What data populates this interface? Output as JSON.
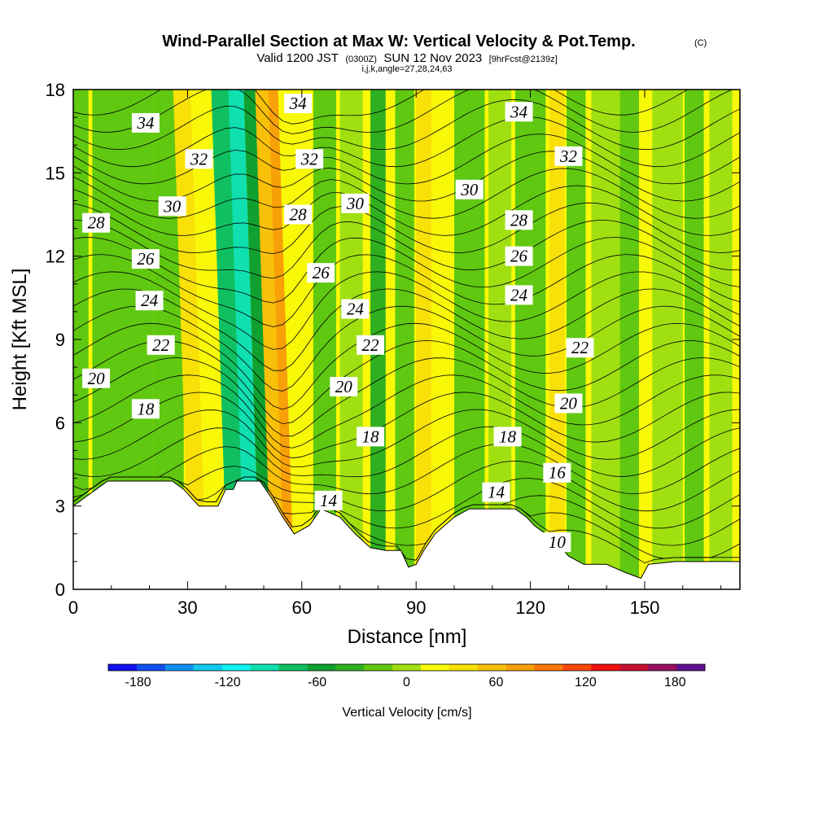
{
  "chart_data": {
    "type": "heatmap",
    "title": "Wind-Parallel Section at Max W: Vertical Velocity & Pot.Temp.",
    "copyright_mark": "(C)",
    "subtitle_valid_prefix": "Valid 1200 JST",
    "subtitle_utc": "(0300Z)",
    "subtitle_date": "SUN 12 Nov 2023",
    "subtitle_forecast": "[9hrFcst@2139z]",
    "subtitle_indices": "i,j,k,angle=27,28,24,63",
    "xlabel": "Distance [nm]",
    "ylabel": "Height [Kft MSL]",
    "xlim": [
      0,
      175
    ],
    "ylim": [
      0,
      18
    ],
    "x_ticks": [
      "0",
      "30",
      "60",
      "90",
      "120",
      "150"
    ],
    "x_tick_values": [
      0,
      30,
      60,
      90,
      120,
      150
    ],
    "y_ticks": [
      "0",
      "3",
      "6",
      "9",
      "12",
      "15",
      "18"
    ],
    "y_tick_values": [
      0,
      3,
      6,
      9,
      12,
      15,
      18
    ],
    "colorbar": {
      "label": "Vertical Velocity [cm/s]",
      "range": [
        -200,
        200
      ],
      "step": 20,
      "tick_labels": [
        "-180",
        "-120",
        "-60",
        "0",
        "60",
        "120",
        "180"
      ],
      "tick_values": [
        -180,
        -120,
        -60,
        0,
        60,
        120,
        180
      ],
      "colors": [
        "#1010f0",
        "#1050f0",
        "#1090f0",
        "#10c8f0",
        "#10f0f0",
        "#10e0b0",
        "#10c060",
        "#10a030",
        "#30b020",
        "#60c810",
        "#a0e010",
        "#f8f808",
        "#f8e008",
        "#f8c008",
        "#f8a008",
        "#f87808",
        "#f84808",
        "#f01010",
        "#c81030",
        "#981060",
        "#601090"
      ]
    },
    "wind_velocity_bands": [
      {
        "x_center": 2,
        "width": 4,
        "v": -20
      },
      {
        "x_center": 13,
        "width": 16,
        "v": -10
      },
      {
        "x_center": 25,
        "width": 8,
        "v": -15
      },
      {
        "x_center": 33,
        "width": 5,
        "v": 40
      },
      {
        "x_center": 38,
        "width": 6,
        "v": 30
      },
      {
        "x_center": 43,
        "width": 5,
        "v": -70
      },
      {
        "x_center": 47,
        "width": 4,
        "v": -90
      },
      {
        "x_center": 51,
        "width": 4,
        "v": -60
      },
      {
        "x_center": 54,
        "width": 4,
        "v": 60
      },
      {
        "x_center": 57,
        "width": 3,
        "v": 80
      },
      {
        "x_center": 60,
        "width": 4,
        "v": 30
      },
      {
        "x_center": 66,
        "width": 6,
        "v": -10
      },
      {
        "x_center": 73,
        "width": 6,
        "v": 10
      },
      {
        "x_center": 80,
        "width": 4,
        "v": -30
      },
      {
        "x_center": 87,
        "width": 5,
        "v": -10
      },
      {
        "x_center": 92,
        "width": 4,
        "v": 40
      },
      {
        "x_center": 96,
        "width": 4,
        "v": 20
      },
      {
        "x_center": 104,
        "width": 8,
        "v": -20
      },
      {
        "x_center": 112,
        "width": 6,
        "v": 10
      },
      {
        "x_center": 120,
        "width": 8,
        "v": -10
      },
      {
        "x_center": 127,
        "width": 4,
        "v": 40
      },
      {
        "x_center": 132,
        "width": 5,
        "v": -10
      },
      {
        "x_center": 140,
        "width": 8,
        "v": 10
      },
      {
        "x_center": 146,
        "width": 5,
        "v": -15
      },
      {
        "x_center": 156,
        "width": 8,
        "v": 5
      },
      {
        "x_center": 163,
        "width": 5,
        "v": -20
      },
      {
        "x_center": 170,
        "width": 6,
        "v": 5
      }
    ],
    "terrain_height_kft": [
      [
        0,
        3.0
      ],
      [
        3,
        3.3
      ],
      [
        6,
        3.6
      ],
      [
        9,
        3.9
      ],
      [
        15,
        3.9
      ],
      [
        20,
        3.9
      ],
      [
        26,
        3.9
      ],
      [
        29,
        3.6
      ],
      [
        33,
        3.0
      ],
      [
        38,
        3.0
      ],
      [
        40,
        3.6
      ],
      [
        42,
        3.6
      ],
      [
        43,
        3.9
      ],
      [
        49,
        3.9
      ],
      [
        52,
        3.3
      ],
      [
        55,
        2.6
      ],
      [
        58,
        2.0
      ],
      [
        62,
        2.3
      ],
      [
        65,
        2.9
      ],
      [
        70,
        2.6
      ],
      [
        74,
        2.0
      ],
      [
        78,
        1.5
      ],
      [
        82,
        1.4
      ],
      [
        86,
        1.4
      ],
      [
        88,
        0.8
      ],
      [
        90,
        0.9
      ],
      [
        92,
        1.4
      ],
      [
        95,
        2.0
      ],
      [
        100,
        2.6
      ],
      [
        104,
        2.9
      ],
      [
        110,
        2.9
      ],
      [
        116,
        2.9
      ],
      [
        119,
        2.6
      ],
      [
        121,
        2.3
      ],
      [
        124,
        2.0
      ],
      [
        127,
        1.7
      ],
      [
        130,
        1.2
      ],
      [
        134,
        0.9
      ],
      [
        140,
        0.9
      ],
      [
        145,
        0.6
      ],
      [
        149,
        0.4
      ],
      [
        151,
        0.9
      ],
      [
        158,
        1.0
      ],
      [
        165,
        1.0
      ],
      [
        170,
        1.0
      ],
      [
        175,
        1.0
      ]
    ],
    "theta_contours": [
      {
        "label": "10",
        "labels_at": [
          [
            127,
            1.7
          ]
        ]
      },
      {
        "label": "14",
        "labels_at": [
          [
            67,
            3.2
          ],
          [
            111,
            3.5
          ]
        ]
      },
      {
        "label": "16",
        "labels_at": [
          [
            127,
            4.2
          ]
        ]
      },
      {
        "label": "18",
        "labels_at": [
          [
            19,
            6.5
          ],
          [
            78,
            5.5
          ],
          [
            114,
            5.5
          ]
        ]
      },
      {
        "label": "20",
        "labels_at": [
          [
            6,
            7.6
          ],
          [
            71,
            7.3
          ],
          [
            130,
            6.7
          ]
        ]
      },
      {
        "label": "22",
        "labels_at": [
          [
            23,
            8.8
          ],
          [
            78,
            8.8
          ],
          [
            133,
            8.7
          ]
        ]
      },
      {
        "label": "24",
        "labels_at": [
          [
            20,
            10.4
          ],
          [
            74,
            10.1
          ],
          [
            117,
            10.6
          ]
        ]
      },
      {
        "label": "26",
        "labels_at": [
          [
            19,
            11.9
          ],
          [
            65,
            11.4
          ],
          [
            117,
            12.0
          ]
        ]
      },
      {
        "label": "28",
        "labels_at": [
          [
            6,
            13.2
          ],
          [
            59,
            13.5
          ],
          [
            117,
            13.3
          ]
        ]
      },
      {
        "label": "30",
        "labels_at": [
          [
            26,
            13.8
          ],
          [
            74,
            13.9
          ],
          [
            104,
            14.4
          ]
        ]
      },
      {
        "label": "32",
        "labels_at": [
          [
            33,
            15.5
          ],
          [
            62,
            15.5
          ],
          [
            130,
            15.6
          ]
        ]
      },
      {
        "label": "34",
        "labels_at": [
          [
            19,
            16.8
          ],
          [
            59,
            17.5
          ],
          [
            117,
            17.2
          ]
        ]
      }
    ]
  }
}
